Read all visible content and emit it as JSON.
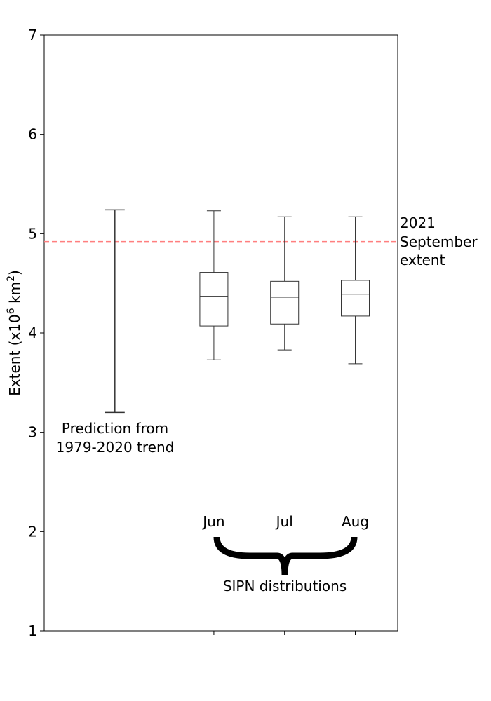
{
  "chart_data": {
    "type": "box",
    "ylabel": "Extent (x10",
    "ylabel_sup1": "6",
    "ylabel_mid": " km",
    "ylabel_sup2": "2",
    "ylabel_end": ")",
    "ylim": [
      1,
      7
    ],
    "yticks": [
      "1",
      "2",
      "3",
      "4",
      "5",
      "6",
      "7"
    ],
    "grid": false,
    "errorbar": {
      "label_line1": "Prediction from",
      "label_line2": "1979-2020 trend",
      "low": 3.2,
      "high": 5.24
    },
    "boxes": [
      {
        "label": "Jun",
        "whisker_low": 3.73,
        "q1": 4.07,
        "median": 4.37,
        "q3": 4.61,
        "whisker_high": 5.23
      },
      {
        "label": "Jul",
        "whisker_low": 3.83,
        "q1": 4.09,
        "median": 4.36,
        "q3": 4.52,
        "whisker_high": 5.17
      },
      {
        "label": "Aug",
        "whisker_low": 3.69,
        "q1": 4.17,
        "median": 4.39,
        "q3": 4.53,
        "whisker_high": 5.17
      }
    ],
    "reference_line": {
      "value": 4.92,
      "label_line1": "2021",
      "label_line2": "September",
      "label_line3": "extent",
      "color": "#ff7f7f"
    },
    "group_label": "SIPN distributions"
  }
}
